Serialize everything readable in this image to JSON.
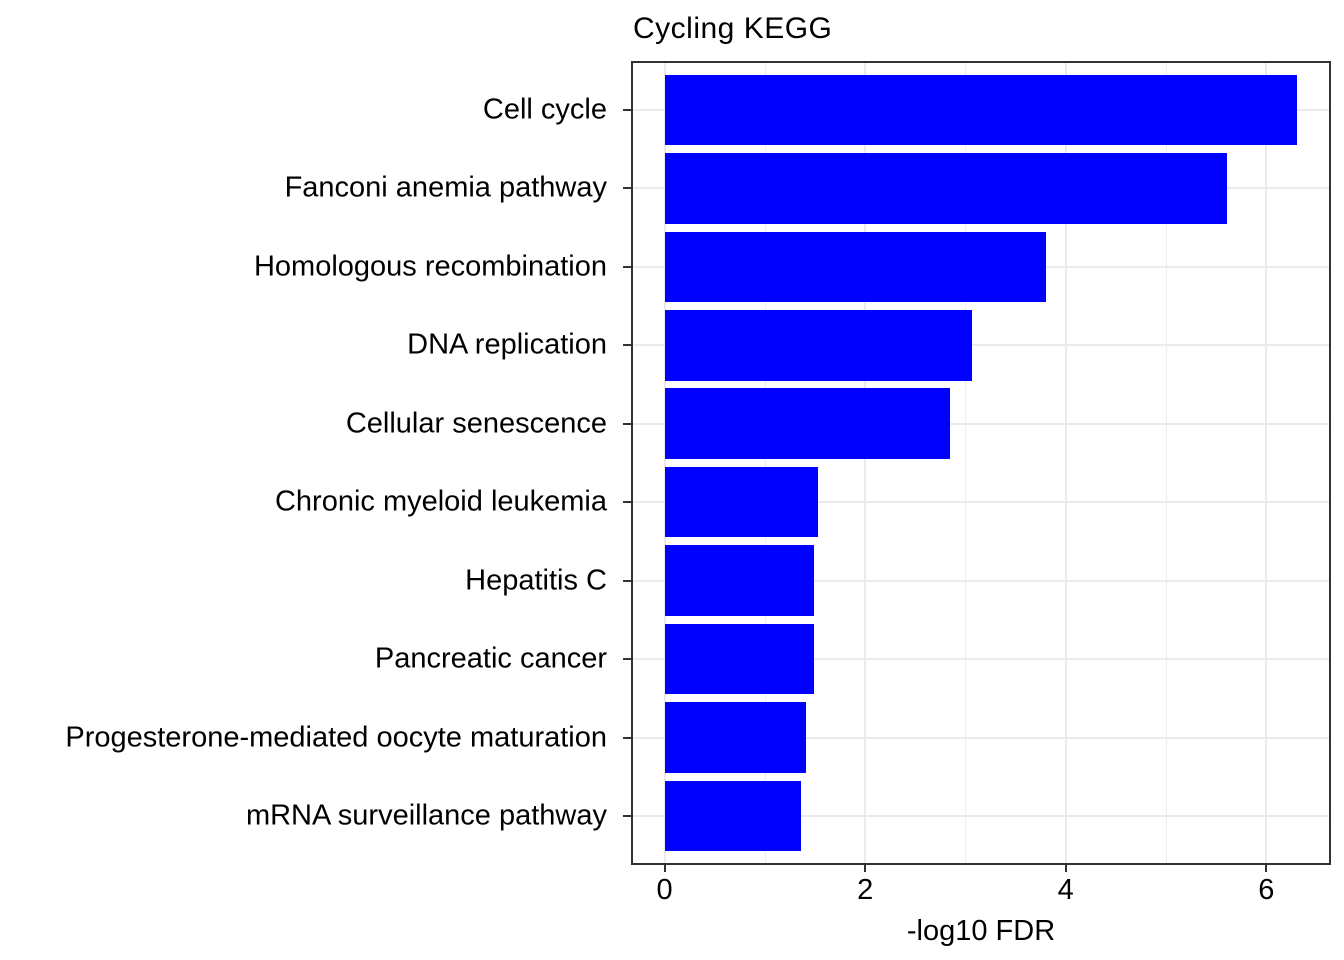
{
  "title": "Cycling KEGG",
  "colors": {
    "bar": "#0000ff",
    "grid_major": "#ebebeb",
    "grid_minor": "#ededed",
    "panel_border": "#333333",
    "tick_mark": "#333333",
    "text": "#000000",
    "background": "#ffffff"
  },
  "chart_data": {
    "type": "bar",
    "orientation": "horizontal",
    "title": "Cycling KEGG",
    "xlabel": "-log10 FDR",
    "ylabel": "",
    "categories": [
      "Cell cycle",
      "Fanconi anemia pathway",
      "Homologous recombination",
      "DNA replication",
      "Cellular senescence",
      "Chronic myeloid leukemia",
      "Hepatitis C",
      "Pancreatic cancer",
      "Progesterone-mediated oocyte maturation",
      "mRNA surveillance pathway"
    ],
    "values": [
      6.31,
      5.61,
      3.8,
      3.07,
      2.85,
      1.53,
      1.49,
      1.49,
      1.41,
      1.36
    ],
    "xlim": [
      0,
      6.31
    ],
    "x_expand": 0.05,
    "x_ticks": [
      0,
      2,
      4,
      6
    ],
    "x_minor_ticks": [
      1,
      3,
      5
    ],
    "bar_color": "#0000ff",
    "bar_width_fraction": 0.9,
    "category_padding": 0.6,
    "grid": true,
    "legend": false
  }
}
